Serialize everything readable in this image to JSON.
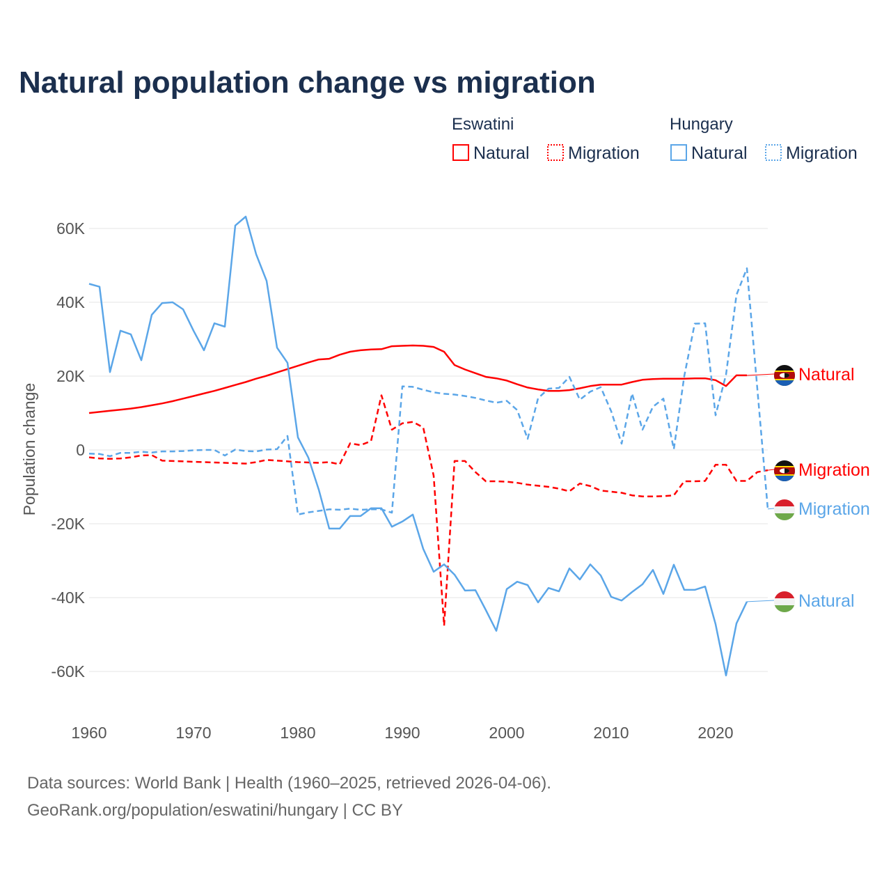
{
  "chart_data": {
    "type": "line",
    "title": "Natural population change vs migration",
    "xlabel": "",
    "ylabel": "Population change",
    "xlim": [
      1960,
      2025
    ],
    "ylim": [
      -70000,
      65000
    ],
    "x_ticks": [
      "1960",
      "1970",
      "1980",
      "1990",
      "2000",
      "2010",
      "2020"
    ],
    "y_ticks": [
      {
        "value": 60000,
        "label": "60K"
      },
      {
        "value": 40000,
        "label": "40K"
      },
      {
        "value": 20000,
        "label": "20K"
      },
      {
        "value": 0,
        "label": "0"
      },
      {
        "value": -20000,
        "label": "-20K"
      },
      {
        "value": -40000,
        "label": "-40K"
      },
      {
        "value": -60000,
        "label": "-60K"
      }
    ],
    "grid": true,
    "legend": {
      "placement": "top-right",
      "groups": [
        {
          "country": "Eswatini",
          "items": [
            "Natural",
            "Migration"
          ]
        },
        {
          "country": "Hungary",
          "items": [
            "Natural",
            "Migration"
          ]
        }
      ]
    },
    "series": [
      {
        "name": "Eswatini Natural",
        "country": "Eswatini",
        "kind": "Natural",
        "label": "Natural",
        "color": "#ff0000",
        "dashed": false,
        "start": 1960,
        "values": [
          10000,
          10300,
          10600,
          10900,
          11200,
          11600,
          12100,
          12600,
          13200,
          13900,
          14600,
          15300,
          16000,
          16800,
          17600,
          18400,
          19300,
          20100,
          21000,
          21900,
          22800,
          23700,
          24500,
          24700,
          25800,
          26600,
          27000,
          27200,
          27300,
          28100,
          28200,
          28300,
          28200,
          27900,
          26600,
          23000,
          21800,
          20800,
          19800,
          19400,
          18800,
          17800,
          16900,
          16400,
          16000,
          16000,
          16200,
          16700,
          17300,
          17700,
          17700,
          17700,
          18400,
          19000,
          19200,
          19300,
          19300,
          19300,
          19400,
          19400,
          18900,
          17300,
          20200,
          20200
        ]
      },
      {
        "name": "Eswatini Migration",
        "country": "Eswatini",
        "kind": "Migration",
        "label": "Migration",
        "color": "#ff0000",
        "dashed": true,
        "start": 1960,
        "values": [
          -2000,
          -2300,
          -2400,
          -2300,
          -2000,
          -1500,
          -1400,
          -2900,
          -3000,
          -3100,
          -3200,
          -3300,
          -3400,
          -3500,
          -3600,
          -3700,
          -3300,
          -2700,
          -2900,
          -3100,
          -3300,
          -3400,
          -3500,
          -3300,
          -3900,
          1800,
          1300,
          2400,
          14800,
          5500,
          7200,
          7600,
          6100,
          -7000,
          -47600,
          -3000,
          -3000,
          -6000,
          -8500,
          -8500,
          -8600,
          -8900,
          -9400,
          -9700,
          -10000,
          -10500,
          -11200,
          -9100,
          -9800,
          -11000,
          -11300,
          -11600,
          -12300,
          -12600,
          -12600,
          -12500,
          -12300,
          -8500,
          -8500,
          -8400,
          -4000,
          -4000,
          -8400,
          -8400,
          -6000,
          -5500
        ]
      },
      {
        "name": "Hungary Natural",
        "country": "Hungary",
        "kind": "Natural",
        "label": "Natural",
        "color": "#5ba6e8",
        "dashed": false,
        "start": 1960,
        "values": [
          45000,
          44200,
          21100,
          32300,
          31300,
          24300,
          36600,
          39800,
          40000,
          38100,
          32300,
          27000,
          34300,
          33400,
          60800,
          63200,
          53000,
          45800,
          27700,
          23600,
          3400,
          -2100,
          -10800,
          -21300,
          -21300,
          -17900,
          -17900,
          -15800,
          -15800,
          -20800,
          -19400,
          -17500,
          -26800,
          -33000,
          -31000,
          -33800,
          -38100,
          -38000,
          -43400,
          -49000,
          -37700,
          -35700,
          -36600,
          -41300,
          -37400,
          -38300,
          -32100,
          -35100,
          -31000,
          -34000,
          -39800,
          -40800,
          -38500,
          -36400,
          -32500,
          -39000,
          -31100,
          -37900,
          -37900,
          -37000,
          -47200,
          -61100,
          -47000,
          -41100
        ]
      },
      {
        "name": "Hungary Migration",
        "country": "Hungary",
        "kind": "Migration",
        "label": "Migration",
        "color": "#5ba6e8",
        "dashed": true,
        "start": 1960,
        "values": [
          -1000,
          -1100,
          -1700,
          -800,
          -800,
          -500,
          -700,
          -400,
          -400,
          -300,
          -100,
          0,
          0,
          -1500,
          100,
          -300,
          -400,
          100,
          200,
          3800,
          -17500,
          -16900,
          -16500,
          -16100,
          -16200,
          -15900,
          -16200,
          -16100,
          -16100,
          -17000,
          17200,
          17100,
          16300,
          15600,
          15200,
          15000,
          14600,
          14100,
          13400,
          12800,
          13300,
          10800,
          3000,
          14000,
          16600,
          16800,
          19800,
          13600,
          15800,
          17000,
          10500,
          1700,
          15300,
          5500,
          11700,
          13900,
          200,
          20000,
          34200,
          34300,
          9400,
          20400,
          42000,
          49200,
          16500,
          -16000
        ]
      }
    ]
  },
  "source_line_1": "Data sources: World Bank | Health (1960–2025, retrieved 2026-04-06).",
  "source_line_2": "GeoRank.org/population/eswatini/hungary | CC BY"
}
